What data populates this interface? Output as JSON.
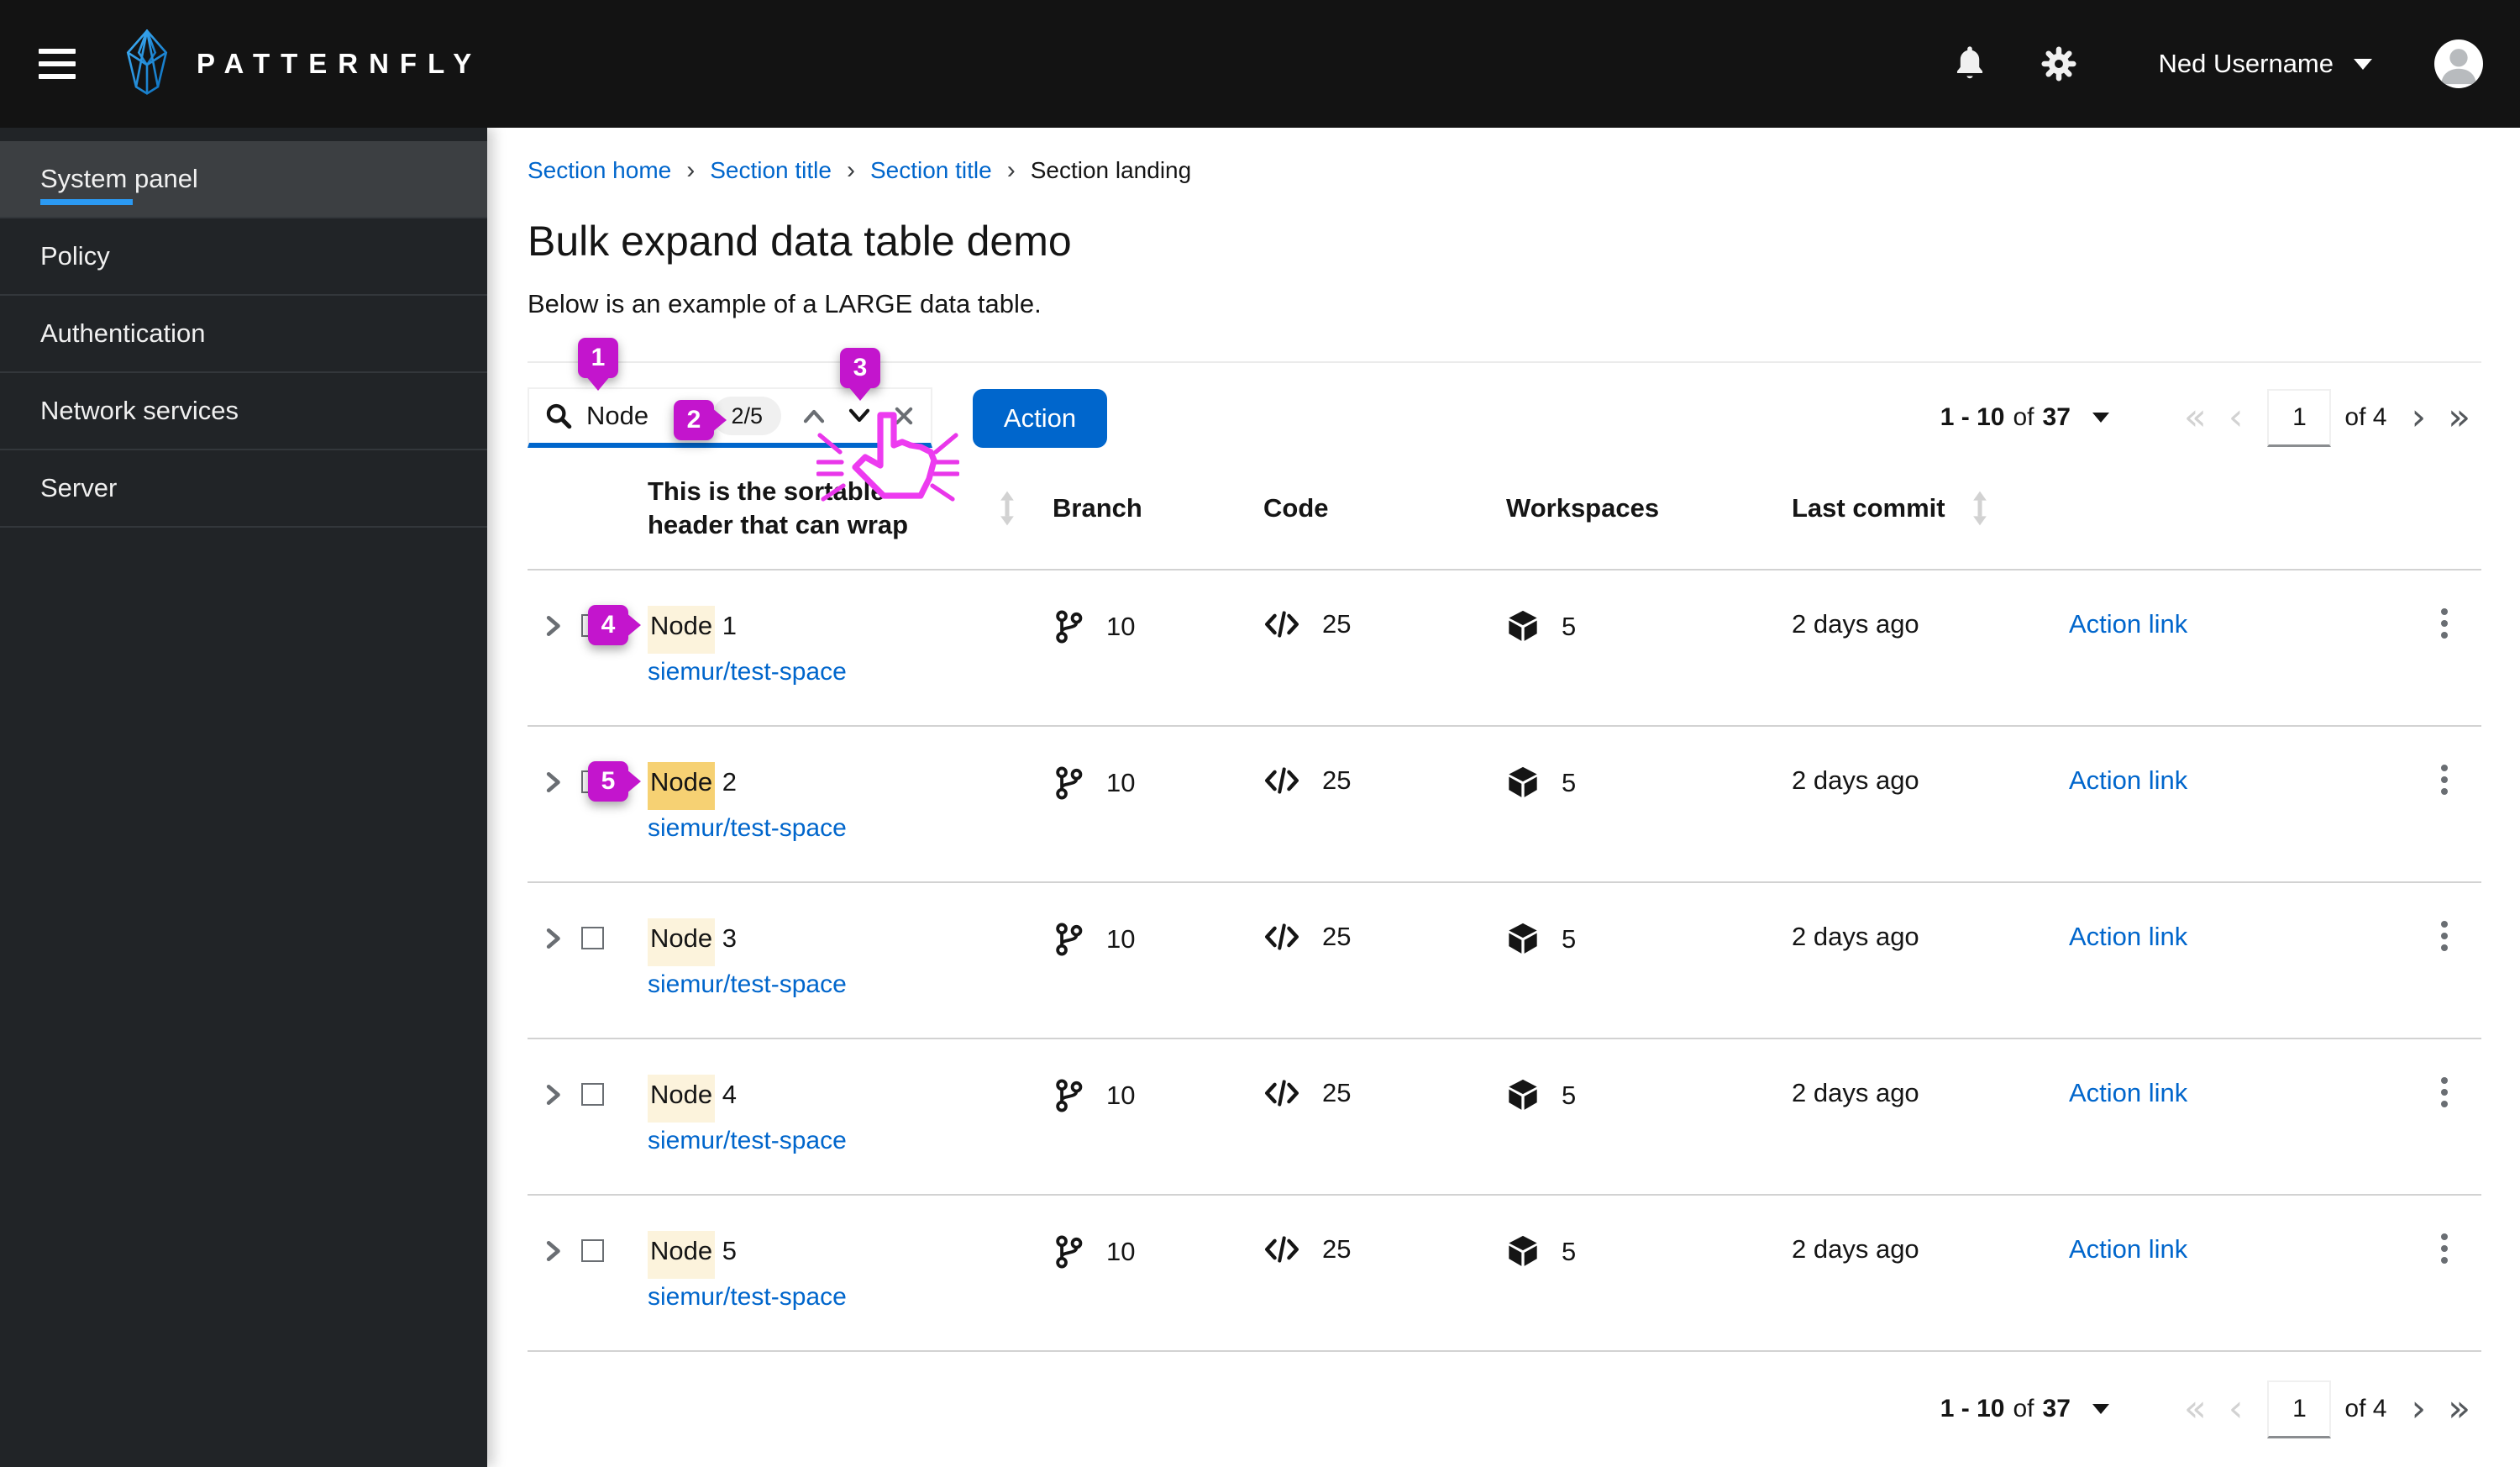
{
  "masthead": {
    "brand": "PATTERNFLY",
    "user": "Ned Username"
  },
  "sidebar": {
    "items": [
      {
        "label": "System panel",
        "active": true
      },
      {
        "label": "Policy",
        "active": false
      },
      {
        "label": "Authentication",
        "active": false
      },
      {
        "label": "Network services",
        "active": false
      },
      {
        "label": "Server",
        "active": false
      }
    ]
  },
  "breadcrumb": {
    "links": [
      "Section home",
      "Section title",
      "Section title"
    ],
    "current": "Section landing"
  },
  "page": {
    "title": "Bulk expand data table demo",
    "subtitle": "Below is an example of a LARGE data table."
  },
  "toolbar": {
    "search": {
      "value": "Node",
      "match_badge": "2/5"
    },
    "action_label": "Action"
  },
  "pagination": {
    "range": "1 - 10",
    "of_word": "of",
    "total": "37",
    "page_value": "1",
    "page_of": "of 4"
  },
  "table": {
    "headers": {
      "sortable": "This is the sortable header that can wrap",
      "branch": "Branch",
      "code": "Code",
      "workspaces": "Workspaces",
      "last_commit": "Last commit"
    },
    "rows": [
      {
        "match": "Node",
        "suffix": "1",
        "link": "siemur/test-space",
        "branch": "10",
        "code": "25",
        "workspaces": "5",
        "last_commit": "2 days ago",
        "action": "Action link",
        "current_match": false
      },
      {
        "match": "Node",
        "suffix": "2",
        "link": "siemur/test-space",
        "branch": "10",
        "code": "25",
        "workspaces": "5",
        "last_commit": "2 days ago",
        "action": "Action link",
        "current_match": true
      },
      {
        "match": "Node",
        "suffix": "3",
        "link": "siemur/test-space",
        "branch": "10",
        "code": "25",
        "workspaces": "5",
        "last_commit": "2 days ago",
        "action": "Action link",
        "current_match": false
      },
      {
        "match": "Node",
        "suffix": "4",
        "link": "siemur/test-space",
        "branch": "10",
        "code": "25",
        "workspaces": "5",
        "last_commit": "2 days ago",
        "action": "Action link",
        "current_match": false
      },
      {
        "match": "Node",
        "suffix": "5",
        "link": "siemur/test-space",
        "branch": "10",
        "code": "25",
        "workspaces": "5",
        "last_commit": "2 days ago",
        "action": "Action link",
        "current_match": false
      }
    ]
  },
  "annotations": {
    "markers": [
      "1",
      "2",
      "3",
      "4",
      "5"
    ]
  },
  "colors": {
    "accent": "#0066cc",
    "masthead_bg": "#131313",
    "sidebar_bg": "#212427",
    "sidebar_active_bg": "#3c3f42",
    "nav_active_indicator": "#2b9af3",
    "annotation_magenta": "#c315cd",
    "search_highlight": "#fcf3dc",
    "search_highlight_current": "#f6d173",
    "row_border": "#d2d2d2",
    "sort_icon": "#d2d2d2"
  }
}
